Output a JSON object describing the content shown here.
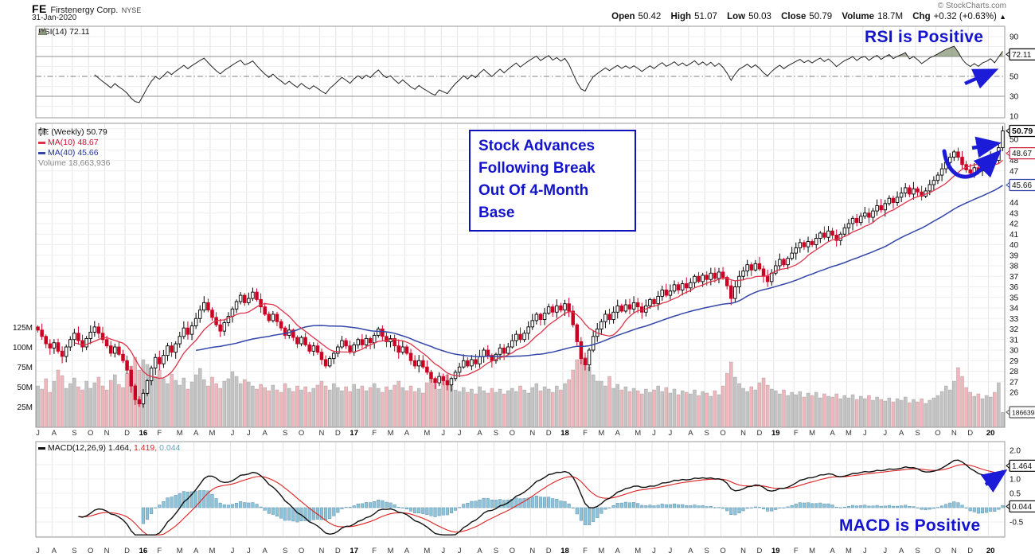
{
  "header": {
    "symbol": "FE",
    "company": "Firstenergy Corp.",
    "exchange": "NYSE",
    "date": "31-Jan-2020",
    "credit": "© StockCharts.com",
    "quote": [
      {
        "label": "Open",
        "value": "50.42"
      },
      {
        "label": "High",
        "value": "51.07"
      },
      {
        "label": "Low",
        "value": "50.03"
      },
      {
        "label": "Close",
        "value": "50.79"
      },
      {
        "label": "Volume",
        "value": "18.7M"
      },
      {
        "label": "Chg",
        "value": "+0.32 (+0.63%)"
      }
    ],
    "chg_arrow": "▲"
  },
  "rsi_panel": {
    "legend": "RSI(14) 72.11",
    "annotation": "RSI is Positive",
    "value_box": "72.11",
    "ticks": [
      {
        "label": "90",
        "v": 90
      },
      {
        "label": "50",
        "v": 50
      },
      {
        "label": "30",
        "v": 30
      },
      {
        "label": "10",
        "v": 10
      }
    ]
  },
  "main_panel": {
    "legend": {
      "symbol": "FE (Weekly) 50.79",
      "ma10": "MA(10) 48.67",
      "ma40": "MA(40) 45.66",
      "volume": "Volume 18,663,936"
    },
    "annotation": [
      "Stock Advances",
      "Following Break",
      "Out Of 4-Month",
      "Base"
    ],
    "price_boxes": {
      "last": "50.79",
      "ma10": "48.67",
      "ma40": "45.66",
      "volume": "18663936"
    },
    "price_ticks": [
      50,
      48,
      47,
      44,
      43,
      42,
      41,
      40,
      39,
      38,
      37,
      36,
      35,
      34,
      33,
      32,
      31,
      30,
      29,
      28,
      27,
      26
    ],
    "volume_ticks": [
      {
        "label": "125M",
        "m": 125
      },
      {
        "label": "100M",
        "m": 100
      },
      {
        "label": "75M",
        "m": 75
      },
      {
        "label": "50M",
        "m": 50
      },
      {
        "label": "25M",
        "m": 25
      }
    ]
  },
  "macd_panel": {
    "legend_main": "MACD(12,26,9) 1.464,",
    "legend_signal": "1.419,",
    "legend_hist": "0.044",
    "annotation": "MACD is Positive",
    "value_boxes": {
      "macd": "1.464",
      "hist": "0.044"
    },
    "ticks": [
      {
        "label": "2.0",
        "v": 2.0
      },
      {
        "label": "1.0",
        "v": 1.0
      },
      {
        "label": "0.5",
        "v": 0.5
      },
      {
        "label": "-0.5",
        "v": -0.5
      }
    ]
  },
  "colors": {
    "up_body": "#ffffff",
    "up_stroke": "#000000",
    "down_body": "#cc0022",
    "down_stroke": "#cc0022",
    "ma10": "#dd3349",
    "ma40": "#3346a8",
    "vol_up": "#c4c4c4",
    "vol_down": "#f1b6bb",
    "rsi_line": "#222222",
    "rsi_fill": "rgba(104,124,84,0.6)",
    "macd_line": "#111111",
    "signal_line": "#dd2222",
    "hist_fill": "#8fc3da",
    "hist_stroke": "#5a93ad",
    "annotation_blue": "#1414cc",
    "arrow_blue": "#1c1cd8",
    "grid": "#e4e4e4",
    "grid_light": "#efefef",
    "panel_border": "#999999"
  },
  "chart_data": {
    "type": "candlestick",
    "frequency": "weekly",
    "range": "Jul 2015 - Jan 2020",
    "title": "FE Firstenergy Corp. NYSE (Weekly)",
    "ylim_price": [
      26,
      51.5
    ],
    "ylim_rsi": [
      10,
      90
    ],
    "ylim_macd": [
      -1.0,
      2.2
    ],
    "indicators": {
      "rsi_period": 14,
      "ma_fast": 10,
      "ma_slow": 40,
      "macd": [
        12,
        26,
        9
      ]
    },
    "last_values": {
      "close": 50.79,
      "ma10": 48.67,
      "ma40": 45.66,
      "rsi": 72.11,
      "macd": 1.464,
      "signal": 1.419,
      "hist": 0.044,
      "volume": 18663936
    },
    "axis_months": {
      "labels": [
        "J",
        "A",
        "S",
        "O",
        "N",
        "D",
        "16",
        "F",
        "M",
        "A",
        "M",
        "J",
        "J",
        "A",
        "S",
        "O",
        "N",
        "D",
        "17",
        "F",
        "M",
        "A",
        "M",
        "J",
        "J",
        "A",
        "S",
        "O",
        "N",
        "D",
        "18",
        "F",
        "M",
        "A",
        "M",
        "J",
        "J",
        "A",
        "S",
        "O",
        "N",
        "D",
        "19",
        "F",
        "M",
        "A",
        "M",
        "J",
        "J",
        "A",
        "S",
        "O",
        "N",
        "D",
        "20"
      ],
      "weeks": [
        0,
        4,
        9,
        13,
        17,
        22,
        26,
        30,
        35,
        39,
        43,
        48,
        52,
        56,
        61,
        65,
        70,
        74,
        78,
        83,
        87,
        91,
        96,
        100,
        104,
        109,
        113,
        117,
        122,
        126,
        130,
        135,
        139,
        143,
        148,
        152,
        156,
        161,
        165,
        169,
        174,
        178,
        182,
        187,
        191,
        196,
        200,
        204,
        209,
        213,
        217,
        222,
        226,
        230,
        235
      ],
      "year_labels": [
        "16",
        "17",
        "18",
        "19",
        "20"
      ]
    },
    "closes": [
      31.9,
      31.3,
      30.6,
      30.2,
      30.7,
      29.9,
      29.4,
      30.3,
      31.0,
      31.6,
      30.9,
      30.3,
      31.1,
      31.7,
      32.2,
      31.6,
      31.0,
      30.4,
      29.7,
      30.3,
      29.6,
      29.0,
      28.1,
      26.6,
      25.3,
      24.9,
      25.9,
      27.1,
      28.3,
      29.3,
      28.7,
      29.5,
      30.4,
      29.8,
      30.6,
      31.3,
      32.1,
      31.5,
      32.3,
      33.0,
      33.8,
      34.5,
      33.8,
      33.1,
      32.4,
      31.8,
      32.6,
      33.2,
      33.9,
      34.6,
      35.2,
      34.5,
      34.9,
      35.5,
      34.8,
      34.1,
      33.4,
      32.8,
      33.4,
      32.7,
      32.1,
      31.4,
      31.9,
      31.2,
      30.6,
      31.2,
      30.5,
      29.9,
      30.4,
      29.8,
      29.1,
      28.5,
      29.2,
      29.7,
      30.3,
      30.9,
      30.4,
      29.8,
      30.5,
      31.0,
      30.5,
      31.1,
      30.7,
      31.4,
      32.0,
      31.3,
      30.8,
      31.1,
      30.4,
      29.8,
      30.3,
      29.7,
      29.0,
      28.5,
      29.0,
      28.4,
      27.9,
      27.3,
      26.9,
      27.5,
      27.1,
      26.7,
      27.3,
      27.9,
      28.4,
      29.0,
      28.5,
      29.1,
      28.7,
      29.4,
      30.0,
      29.5,
      29.0,
      29.6,
      30.2,
      29.7,
      30.3,
      30.9,
      31.5,
      31.0,
      31.6,
      32.2,
      32.8,
      33.4,
      32.9,
      33.5,
      34.1,
      33.6,
      34.2,
      33.8,
      34.4,
      33.7,
      32.4,
      30.8,
      29.2,
      28.6,
      30.0,
      31.3,
      32.0,
      32.7,
      33.4,
      32.9,
      33.6,
      34.2,
      33.7,
      34.3,
      33.9,
      34.5,
      34.1,
      33.6,
      34.2,
      34.8,
      34.4,
      35.1,
      35.7,
      35.2,
      35.6,
      36.2,
      35.7,
      36.3,
      35.9,
      36.4,
      37.0,
      36.5,
      37.1,
      36.7,
      37.3,
      36.8,
      37.4,
      36.9,
      36.1,
      34.9,
      36.0,
      37.0,
      37.5,
      38.1,
      37.6,
      38.2,
      37.7,
      37.0,
      36.5,
      37.3,
      38.0,
      38.6,
      38.1,
      38.7,
      39.2,
      39.7,
      40.2,
      39.8,
      40.3,
      40.0,
      40.6,
      41.1,
      40.7,
      41.3,
      40.9,
      40.4,
      41.0,
      41.6,
      42.0,
      42.5,
      42.1,
      42.7,
      43.0,
      42.6,
      43.2,
      43.7,
      43.3,
      43.9,
      44.4,
      44.0,
      44.5,
      44.9,
      45.4,
      44.8,
      45.3,
      45.0,
      44.6,
      45.1,
      45.7,
      46.1,
      46.6,
      47.2,
      47.8,
      48.3,
      48.8,
      48.3,
      47.6,
      47.1,
      46.8,
      47.3,
      47.0,
      47.6,
      47.9,
      48.4,
      48.0,
      49.2,
      50.79
    ],
    "volumes_m": [
      52,
      48,
      61,
      44,
      58,
      72,
      65,
      49,
      55,
      62,
      51,
      47,
      58,
      49,
      56,
      63,
      52,
      47,
      59,
      66,
      54,
      50,
      68,
      77,
      88,
      72,
      85,
      79,
      70,
      64,
      72,
      61,
      55,
      67,
      59,
      53,
      62,
      48,
      57,
      66,
      74,
      60,
      52,
      63,
      55,
      49,
      58,
      61,
      70,
      64,
      55,
      60,
      57,
      52,
      48,
      54,
      50,
      46,
      53,
      47,
      44,
      55,
      49,
      45,
      52,
      47,
      51,
      44,
      49,
      53,
      58,
      52,
      47,
      55,
      50,
      46,
      51,
      45,
      54,
      48,
      52,
      46,
      50,
      55,
      49,
      44,
      51,
      47,
      53,
      58,
      50,
      46,
      52,
      45,
      49,
      43,
      56,
      62,
      54,
      48,
      59,
      66,
      53,
      47,
      45,
      50,
      44,
      48,
      42,
      51,
      46,
      43,
      49,
      44,
      48,
      42,
      46,
      49,
      45,
      52,
      47,
      43,
      50,
      55,
      46,
      51,
      48,
      44,
      52,
      47,
      55,
      60,
      72,
      85,
      95,
      88,
      76,
      66,
      58,
      58,
      52,
      64,
      49,
      54,
      47,
      51,
      45,
      49,
      46,
      42,
      48,
      44,
      47,
      52,
      45,
      50,
      43,
      48,
      41,
      46,
      44,
      42,
      47,
      40,
      45,
      43,
      39,
      46,
      41,
      52,
      68,
      82,
      63,
      55,
      49,
      45,
      51,
      47,
      56,
      62,
      53,
      48,
      46,
      42,
      47,
      40,
      44,
      41,
      45,
      38,
      43,
      40,
      44,
      37,
      42,
      39,
      38,
      42,
      36,
      40,
      37,
      41,
      35,
      39,
      36,
      40,
      34,
      38,
      35,
      33,
      37,
      32,
      36,
      34,
      38,
      31,
      35,
      32,
      36,
      30,
      34,
      37,
      40,
      45,
      52,
      47,
      58,
      75,
      64,
      50,
      44,
      39,
      42,
      36,
      40,
      38,
      44,
      56,
      18.7
    ]
  }
}
